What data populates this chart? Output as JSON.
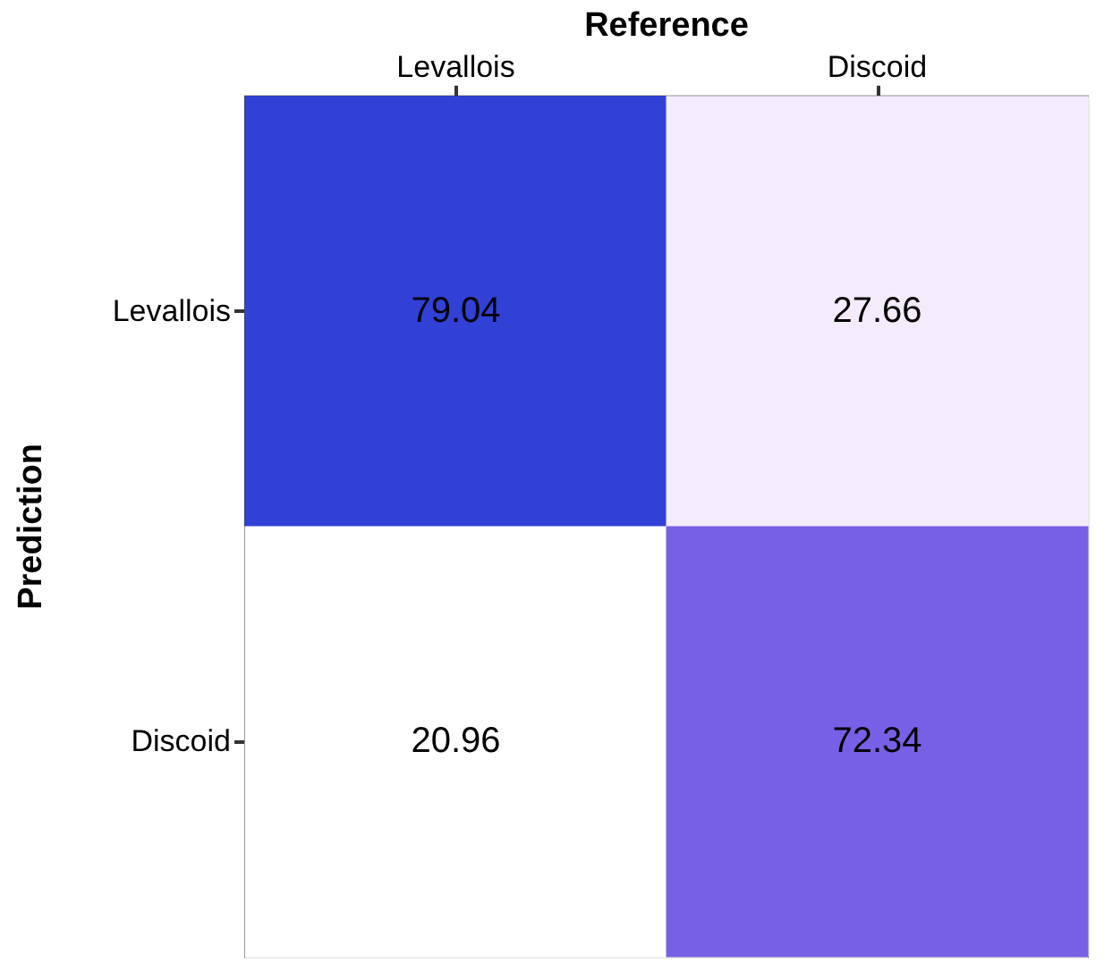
{
  "chart_data": {
    "type": "heatmap",
    "xlabel": "Reference",
    "ylabel": "Prediction",
    "categories": [
      "Levallois",
      "Discoid"
    ],
    "y_categories": [
      "Levallois",
      "Discoid"
    ],
    "cells": [
      [
        79.04,
        27.66
      ],
      [
        20.96,
        72.34
      ]
    ],
    "colors": [
      "#3141d6",
      "#f4ecfd",
      "#ffffff",
      "#7860e6"
    ],
    "data_labels": true,
    "grid": true
  }
}
